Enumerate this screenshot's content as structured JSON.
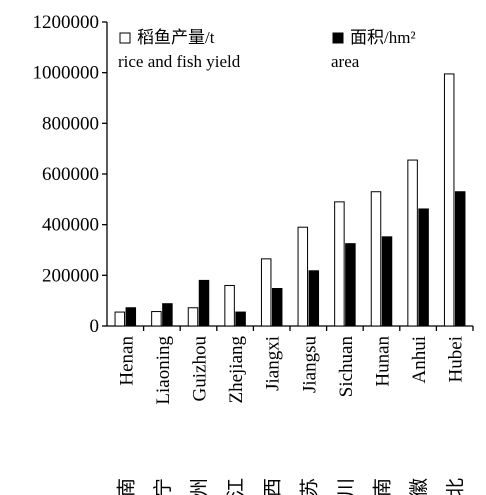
{
  "chart_data": {
    "type": "bar",
    "categories": [
      {
        "en": "Henan",
        "zh": "河南"
      },
      {
        "en": "Liaoning",
        "zh": "辽宁"
      },
      {
        "en": "Guizhou",
        "zh": "贵州"
      },
      {
        "en": "Zhejiang",
        "zh": "浙江"
      },
      {
        "en": "Jiangxi",
        "zh": "江西"
      },
      {
        "en": "Jiangsu",
        "zh": "江苏"
      },
      {
        "en": "Sichuan",
        "zh": "四川"
      },
      {
        "en": "Hunan",
        "zh": "湖南"
      },
      {
        "en": "Anhui",
        "zh": "安徽"
      },
      {
        "en": "Hubei",
        "zh": "湖北"
      }
    ],
    "series": [
      {
        "name": "稻鱼产量/t rice and fish yield",
        "legend_lines": [
          "稻鱼产量/t",
          "rice and fish yield"
        ],
        "fill": "#ffffff",
        "stroke": "#000000",
        "values": [
          55000,
          57000,
          72000,
          160000,
          265000,
          390000,
          490000,
          530000,
          655000,
          995000
        ]
      },
      {
        "name": "面积/hm² area",
        "legend_lines": [
          "面积/hm²",
          "area"
        ],
        "fill": "#000000",
        "stroke": "#000000",
        "values": [
          72000,
          88000,
          180000,
          55000,
          148000,
          218000,
          325000,
          352000,
          462000,
          530000
        ]
      }
    ],
    "y_ticks": [
      "0",
      "200000",
      "400000",
      "600000",
      "800000",
      "1000000",
      "1200000"
    ],
    "ylim": [
      0,
      1200000
    ],
    "legend_position": "top-left",
    "grid": false,
    "xlabel": "",
    "ylabel": "",
    "title": ""
  }
}
